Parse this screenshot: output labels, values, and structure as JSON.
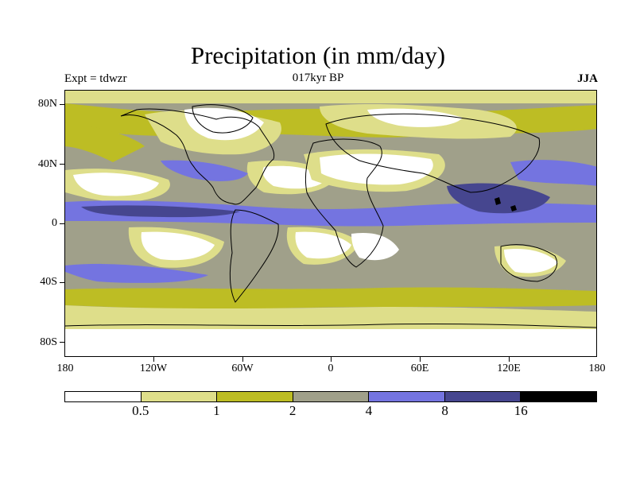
{
  "title": "Precipitation (in mm/day)",
  "subtitle_left": "Expt = tdwzr",
  "subtitle_center": "017kyr BP",
  "subtitle_right": "JJA",
  "latitude_labels": [
    "80N",
    "40N",
    "0",
    "40S",
    "80S"
  ],
  "longitude_labels": [
    "180",
    "120W",
    "60W",
    "0",
    "60E",
    "120E",
    "180"
  ],
  "legend": {
    "colors": [
      "#ffffff",
      "#dede8a",
      "#bdbd24",
      "#a0a08a",
      "#7474e0",
      "#46468f",
      "#000000"
    ],
    "labels": [
      "0.5",
      "1",
      "2",
      "4",
      "8",
      "16"
    ]
  },
  "chart_data": {
    "type": "heatmap",
    "title": "Precipitation (in mm/day)",
    "xlabel": "",
    "ylabel": "",
    "x_range": [
      -180,
      180
    ],
    "y_range": [
      -90,
      90
    ],
    "contour_levels": [
      0.5,
      1,
      2,
      4,
      8,
      16
    ],
    "level_colors": {
      "below_0.5": "#ffffff",
      "0.5-1": "#dede8a",
      "1-2": "#bdbd24",
      "2-4": "#a0a08a",
      "4-8": "#7474e0",
      "8-16": "#46468f",
      "above_16": "#000000"
    }
  }
}
